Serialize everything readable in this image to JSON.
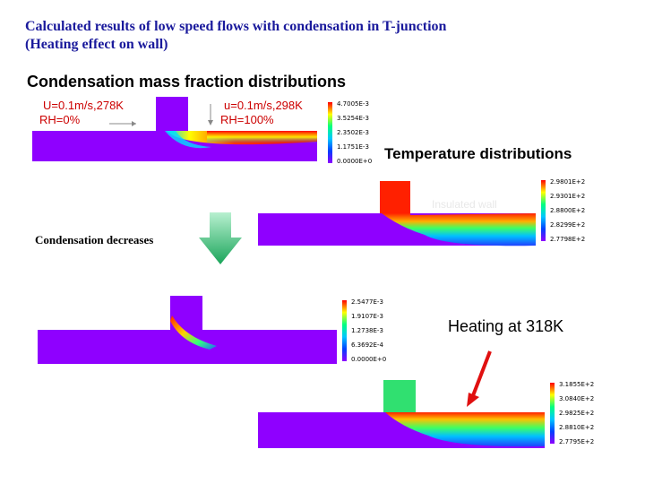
{
  "title": {
    "line1": "Calculated results of low speed flows with condensation in T-junction",
    "line2": "(Heating effect on wall)"
  },
  "sections": {
    "condensation_heading": "Condensation mass fraction distributions",
    "temperature_heading": "Temperature distributions",
    "condensation_decreases": "Condensation decreases",
    "heating_label": "Heating at 318K"
  },
  "inlet_labels": {
    "left_velocity": "U=0.1m/s,278K",
    "left_rh": "RH=0%",
    "right_velocity": "u=0.1m/s,298K",
    "right_rh": "RH=100%"
  },
  "faded_label": "Insulated wall",
  "legends": {
    "condensation_1": [
      "4.7005E-3",
      "3.5254E-3",
      "2.3502E-3",
      "1.1751E-3",
      "0.0000E+0"
    ],
    "temperature_1": [
      "2.9801E+2",
      "2.9301E+2",
      "2.8800E+2",
      "2.8299E+2",
      "2.7798E+2"
    ],
    "condensation_2": [
      "2.5477E-3",
      "1.9107E-3",
      "1.2738E-3",
      "6.3692E-4",
      "0.0000E+0"
    ],
    "temperature_2": [
      "3.1855E+2",
      "3.0840E+2",
      "2.9825E+2",
      "2.8810E+2",
      "2.7795E+2"
    ]
  },
  "colors": {
    "title": "#1a1a9c",
    "field_base": "#8f00ff",
    "arrow": "#22bb66",
    "heating_arrow": "#e01010",
    "annotation": "#cc0000"
  }
}
